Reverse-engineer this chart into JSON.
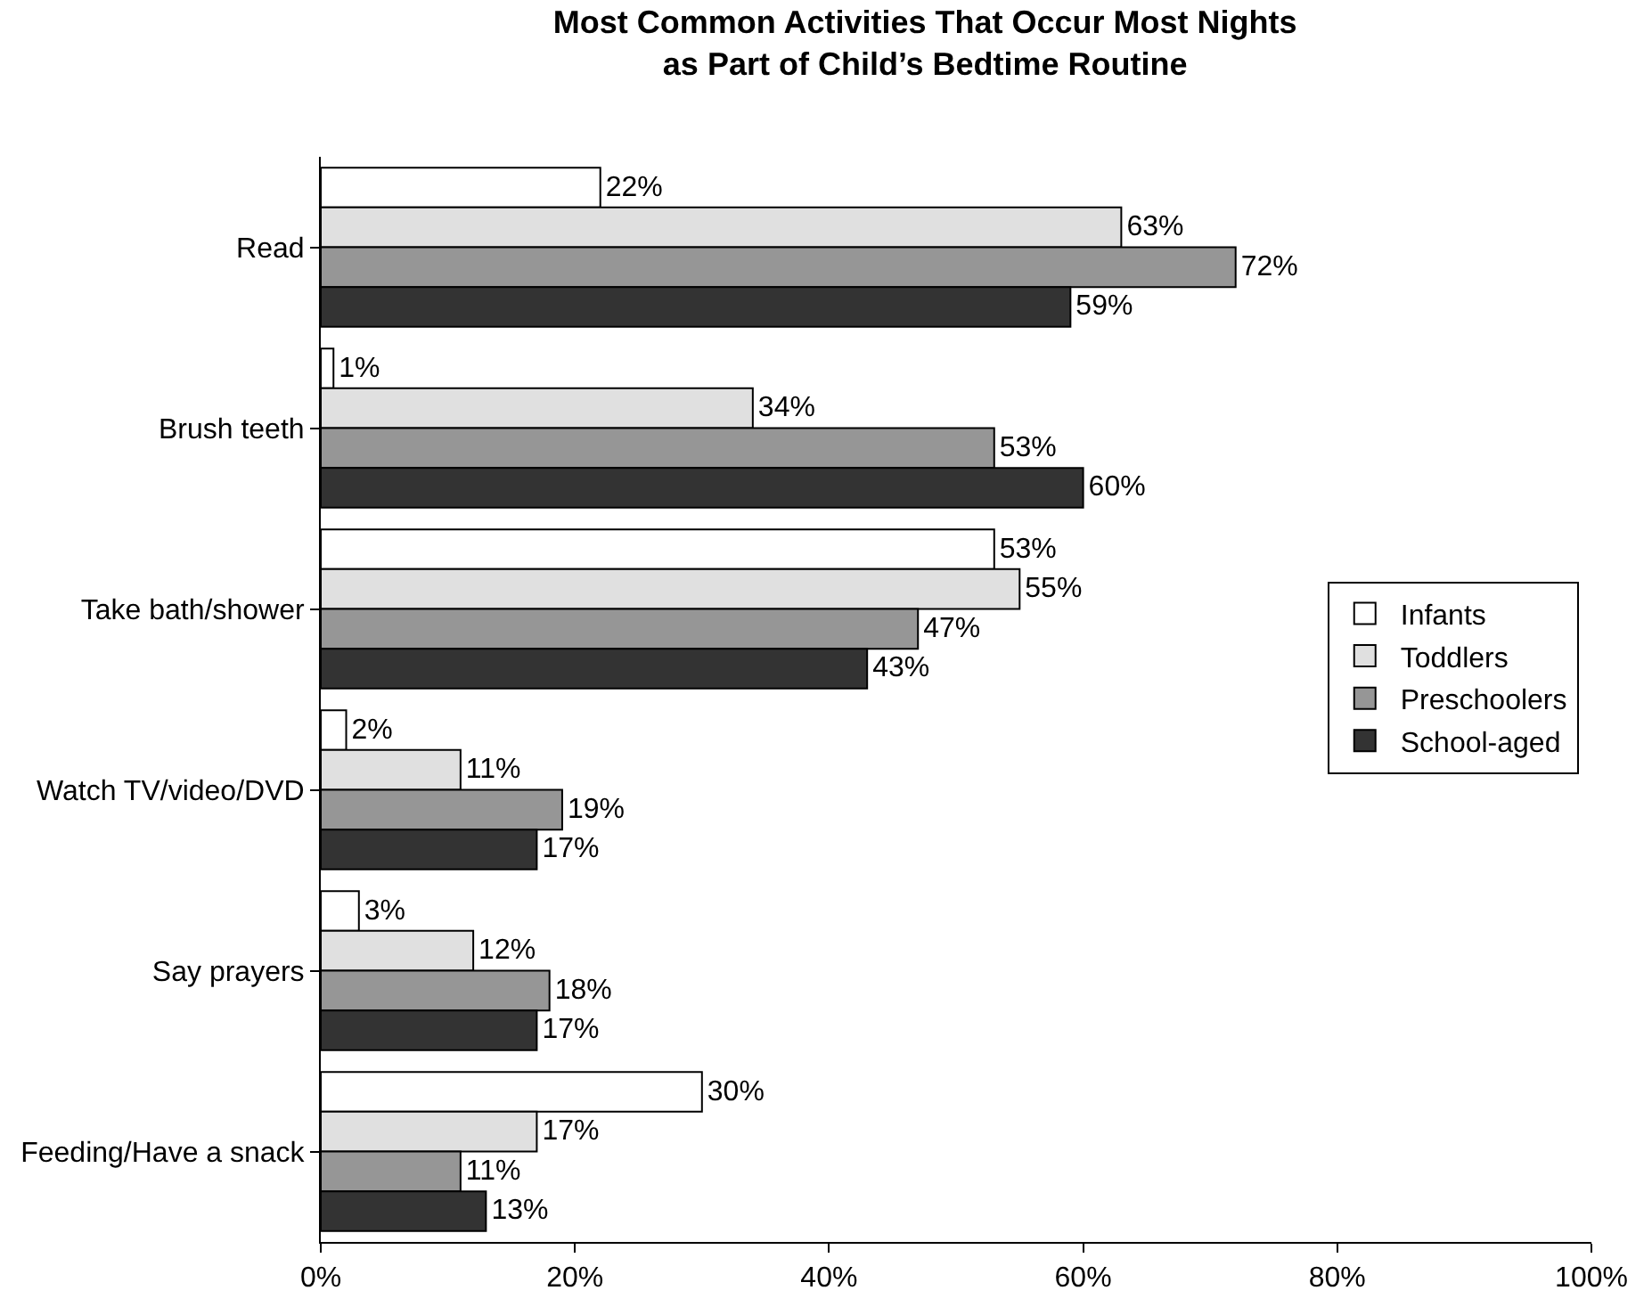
{
  "chart_data": {
    "type": "bar",
    "orientation": "horizontal",
    "title": "Most Common Activities That Occur Most Nights\nas Part of Child’s Bedtime Routine",
    "categories": [
      "Read",
      "Brush teeth",
      "Take bath/shower",
      "Watch TV/video/DVD",
      "Say prayers",
      "Feeding/Have a snack"
    ],
    "series": [
      {
        "name": "Infants",
        "color": "#ffffff",
        "values": [
          22,
          1,
          53,
          2,
          3,
          30
        ],
        "value_labels": [
          "22%",
          "1%",
          "53%",
          "2%",
          "3%",
          "30%"
        ]
      },
      {
        "name": "Toddlers",
        "color": "#e0e0e0",
        "values": [
          63,
          34,
          55,
          11,
          12,
          17
        ],
        "value_labels": [
          "63%",
          "34%",
          "55%",
          "11%",
          "12%",
          "17%"
        ]
      },
      {
        "name": "Preschoolers",
        "color": "#969696",
        "values": [
          72,
          53,
          47,
          19,
          18,
          11
        ],
        "value_labels": [
          "72%",
          "53%",
          "47%",
          "19%",
          "18%",
          "11%"
        ]
      },
      {
        "name": "School-aged",
        "color": "#333333",
        "values": [
          59,
          60,
          43,
          17,
          17,
          13
        ],
        "value_labels": [
          "59%",
          "60%",
          "43%",
          "17%",
          "17%",
          "13%"
        ]
      }
    ],
    "xlim": [
      0,
      100
    ],
    "xticks": [
      {
        "value": 0,
        "label": "0%"
      },
      {
        "value": 20,
        "label": "20%"
      },
      {
        "value": 40,
        "label": "40%"
      },
      {
        "value": 60,
        "label": "60%"
      },
      {
        "value": 80,
        "label": "80%"
      },
      {
        "value": 100,
        "label": "100%"
      }
    ],
    "grid": false,
    "legend": "right"
  }
}
